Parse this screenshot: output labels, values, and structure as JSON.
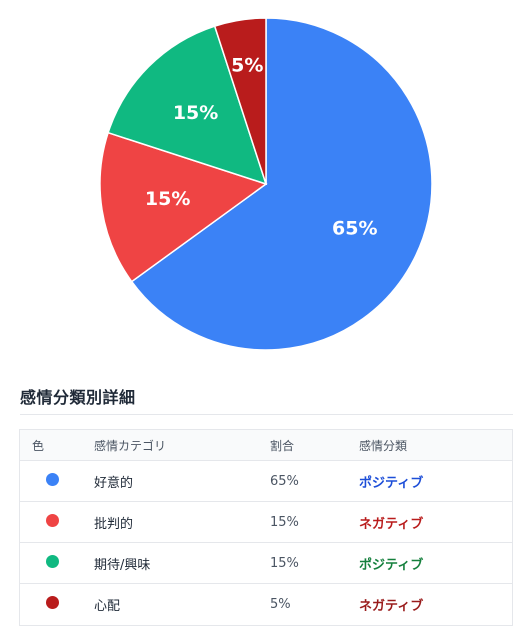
{
  "chart_data": {
    "type": "pie",
    "title": "",
    "slices": [
      {
        "label": "好意的",
        "value": 65,
        "display": "65%",
        "color": "#3b82f6"
      },
      {
        "label": "批判的",
        "value": 15,
        "display": "15%",
        "color": "#ef4444"
      },
      {
        "label": "期待/興味",
        "value": 15,
        "display": "15%",
        "color": "#10b981"
      },
      {
        "label": "心配",
        "value": 5,
        "display": "5%",
        "color": "#b91c1c"
      }
    ],
    "start_angle_deg": 0,
    "direction": "clockwise",
    "legend": "none"
  },
  "section": {
    "title": "感情分類別詳細"
  },
  "table": {
    "headers": {
      "color": "色",
      "category": "感情カテゴリ",
      "ratio": "割合",
      "classification": "感情分類"
    },
    "rows": [
      {
        "color": "#3b82f6",
        "category": "好意的",
        "ratio": "65%",
        "classification": "ポジティブ",
        "class_color": "#1d4ed8"
      },
      {
        "color": "#ef4444",
        "category": "批判的",
        "ratio": "15%",
        "classification": "ネガティブ",
        "class_color": "#b91c1c"
      },
      {
        "color": "#10b981",
        "category": "期待/興味",
        "ratio": "15%",
        "classification": "ポジティブ",
        "class_color": "#15803d"
      },
      {
        "color": "#b91c1c",
        "category": "心配",
        "ratio": "5%",
        "classification": "ネガティブ",
        "class_color": "#991b1b"
      }
    ]
  }
}
